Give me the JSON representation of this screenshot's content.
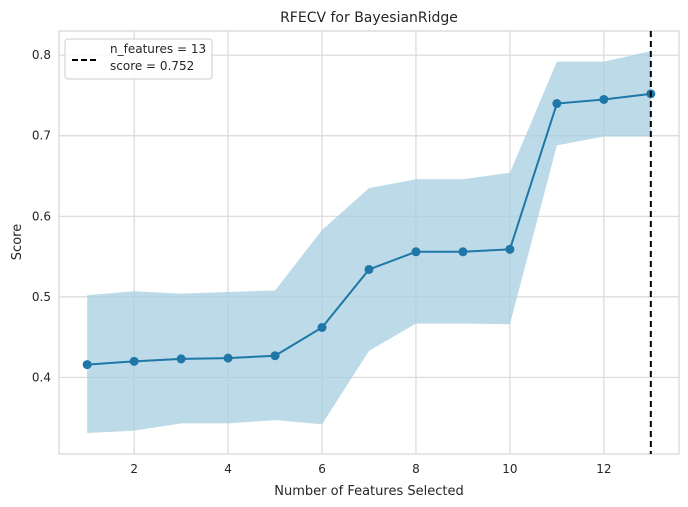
{
  "chart_data": {
    "type": "line",
    "title": "RFECV for BayesianRidge",
    "xlabel": "Number of Features Selected",
    "ylabel": "Score",
    "xlim": [
      0.4,
      13.6
    ],
    "ylim": [
      0.305,
      0.83
    ],
    "x_ticks": [
      2,
      4,
      6,
      8,
      10,
      12
    ],
    "y_ticks": [
      0.4,
      0.5,
      0.6,
      0.7,
      0.8
    ],
    "grid": true,
    "legend_placement": "top-left",
    "x": [
      1,
      2,
      3,
      4,
      5,
      6,
      7,
      8,
      9,
      10,
      11,
      12,
      13
    ],
    "series": [
      {
        "values": [
          0.416,
          0.42,
          0.423,
          0.424,
          0.427,
          0.462,
          0.534,
          0.556,
          0.556,
          0.559,
          0.74,
          0.745,
          0.752
        ],
        "color": "#1f77a8"
      }
    ],
    "band": {
      "lower": [
        0.331,
        0.334,
        0.343,
        0.343,
        0.347,
        0.342,
        0.433,
        0.467,
        0.467,
        0.466,
        0.688,
        0.699,
        0.699
      ],
      "upper": [
        0.502,
        0.507,
        0.504,
        0.506,
        0.508,
        0.583,
        0.635,
        0.646,
        0.646,
        0.654,
        0.792,
        0.792,
        0.805
      ],
      "color": "#a6cee0"
    },
    "marker_line": {
      "x": 13,
      "style": "dashed",
      "color": "#000000"
    },
    "legend": [
      "n_features = 13",
      "score = 0.752"
    ]
  }
}
